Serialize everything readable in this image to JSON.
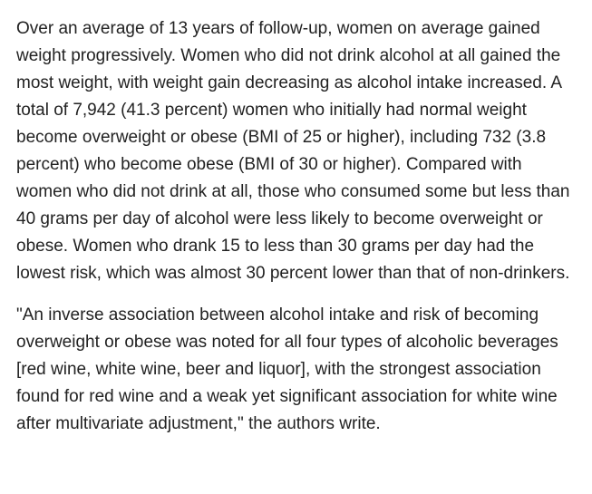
{
  "article": {
    "paragraphs": [
      "Over an average of 13 years of follow-up, women on average gained weight progressively. Women who did not drink alcohol at all gained the most weight, with weight gain decreasing as alcohol intake increased. A total of 7,942 (41.3 percent) women who initially had normal weight become overweight or obese (BMI of 25 or higher), including 732 (3.8 percent) who become obese (BMI of 30 or higher). Compared with women who did not drink at all, those who consumed some but less than 40 grams per day of alcohol were less likely to become overweight or obese. Women who drank 15 to less than 30 grams per day had the lowest risk, which was almost 30 percent lower than that of non-drinkers.",
      "\"An inverse association between alcohol intake and risk of becoming overweight or obese was noted for all four types of alcoholic beverages [red wine, white wine, beer and liquor], with the strongest association found for red wine and a weak yet significant association for white wine after multivariate adjustment,\" the authors write."
    ]
  }
}
